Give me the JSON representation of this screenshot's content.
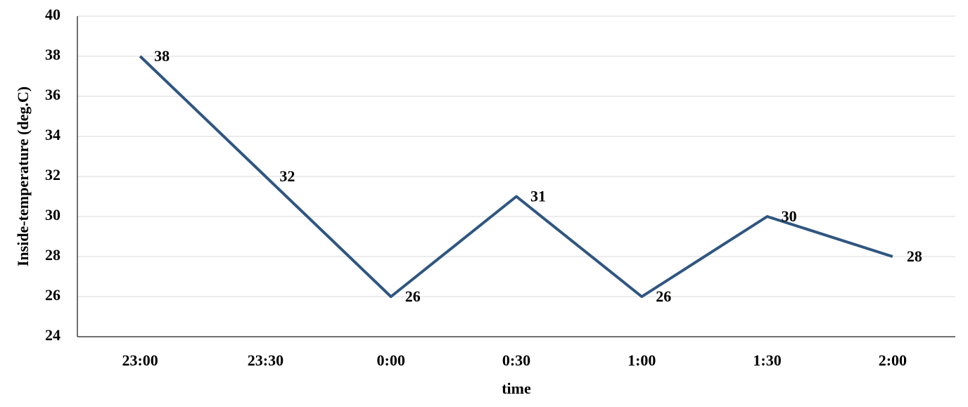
{
  "chart_data": {
    "type": "line",
    "x_label": "time",
    "y_label": "Inside-temperature (deg.C)",
    "categories": [
      "23:00",
      "23:30",
      "0:00",
      "0:30",
      "1:00",
      "1:30",
      "2:00"
    ],
    "values": [
      38,
      32,
      26,
      31,
      26,
      30,
      28
    ],
    "color": "#2f5680",
    "ylim": [
      24,
      40
    ],
    "yticks": [
      24,
      26,
      28,
      30,
      32,
      34,
      36,
      38,
      40
    ],
    "grid": true,
    "data_labels": true
  }
}
